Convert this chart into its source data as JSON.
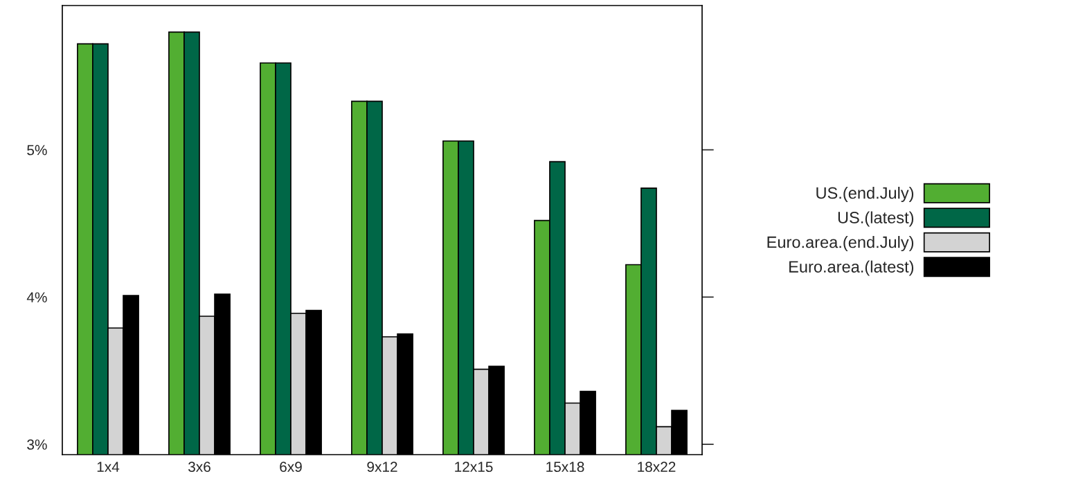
{
  "chart_data": {
    "type": "bar",
    "categories": [
      "1x4",
      "3x6",
      "6x9",
      "9x12",
      "12x15",
      "15x18",
      "18x22"
    ],
    "series": [
      {
        "name": "US.(end.July)",
        "color": "#52ae32",
        "values": [
          5.72,
          5.8,
          5.59,
          5.33,
          5.06,
          4.52,
          4.22
        ]
      },
      {
        "name": "US.(latest)",
        "color": "#006747",
        "values": [
          5.72,
          5.8,
          5.59,
          5.33,
          5.06,
          4.92,
          4.74
        ]
      },
      {
        "name": "Euro.area.(end.July)",
        "color": "#d3d3d3",
        "values": [
          3.79,
          3.87,
          3.89,
          3.73,
          3.51,
          3.28,
          3.12
        ]
      },
      {
        "name": "Euro.area.(latest)",
        "color": "#000000",
        "values": [
          4.01,
          4.02,
          3.91,
          3.75,
          3.53,
          3.36,
          3.23
        ]
      }
    ],
    "ylim": [
      2.93,
      5.98
    ],
    "yticks": [
      {
        "value": 3,
        "label": "3%"
      },
      {
        "value": 4,
        "label": "4%"
      },
      {
        "value": 5,
        "label": "5%"
      }
    ],
    "grid": false,
    "legend": "right"
  }
}
